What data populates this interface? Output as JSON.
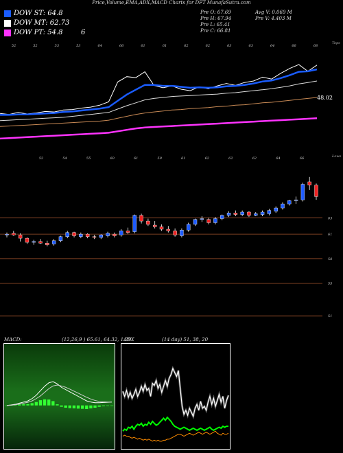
{
  "header": {
    "title": "Price,Volume,EMA,ADX,MACD Charts for DFT MunafaSutra.com"
  },
  "legend": [
    {
      "label": "DOW ST: 64.8",
      "color": "#1a5cff"
    },
    {
      "label": "DOW MT: 62.73",
      "color": "#ffffff"
    },
    {
      "label": "DOW PT: 54.8",
      "color": "#ff33ff"
    }
  ],
  "legend_extra": "6",
  "stats": {
    "prev_open": "Pre O: 67.69",
    "prev_high": "Pre H: 67.94",
    "prev_low": "Pre L: 65.41",
    "prev_close": "Pre C: 66.81",
    "avg_volume": "Avg V: 0.069 M",
    "prev_volume": "Pre V: 4.403 M"
  },
  "chart_data": [
    {
      "type": "line",
      "name": "ema-panel",
      "top_labels": [
        "52",
        "52",
        "53",
        "53",
        "64",
        "66",
        "61",
        "61",
        "62",
        "62",
        "63",
        "63",
        "64",
        "66",
        "68"
      ],
      "corner_label": "Tops",
      "last_value_label": "48.02",
      "series": [
        {
          "name": "price",
          "color": "#ffffff",
          "values": [
            50.2,
            50.0,
            50.4,
            50.1,
            50.3,
            50.6,
            50.5,
            50.9,
            51.0,
            51.3,
            51.5,
            51.9,
            52.6,
            56.7,
            57.8,
            57.6,
            58.8,
            56.0,
            55.5,
            55.9,
            55.2,
            54.9,
            55.7,
            55.3,
            55.9,
            56.4,
            56.0,
            56.6,
            56.9,
            57.7,
            57.3,
            58.5,
            59.5,
            60.3,
            58.9,
            60.2
          ]
        },
        {
          "name": "ema-short",
          "color": "#1a5cff",
          "values": [
            49.9,
            49.9,
            50.0,
            50.0,
            50.1,
            50.2,
            50.3,
            50.5,
            50.6,
            50.8,
            51.0,
            51.2,
            51.5,
            52.8,
            54.1,
            55.1,
            56.1,
            56.1,
            55.9,
            55.9,
            55.7,
            55.5,
            55.6,
            55.5,
            55.6,
            55.8,
            55.9,
            56.1,
            56.4,
            56.8,
            57.0,
            57.5,
            58.1,
            58.8,
            58.9,
            59.3
          ]
        },
        {
          "name": "ema-mid",
          "color": "#dddddd",
          "values": [
            48.7,
            48.8,
            48.9,
            49.0,
            49.1,
            49.2,
            49.3,
            49.4,
            49.6,
            49.8,
            50.0,
            50.2,
            50.4,
            51.1,
            51.8,
            52.4,
            53.0,
            53.3,
            53.5,
            53.7,
            53.8,
            53.9,
            54.0,
            54.1,
            54.2,
            54.4,
            54.5,
            54.7,
            54.9,
            55.1,
            55.3,
            55.6,
            55.9,
            56.3,
            56.6,
            56.9
          ]
        },
        {
          "name": "ema-long",
          "color": "#c98a55",
          "values": [
            47.5,
            47.6,
            47.7,
            47.8,
            47.9,
            48.0,
            48.1,
            48.2,
            48.3,
            48.4,
            48.5,
            48.6,
            48.8,
            49.2,
            49.6,
            50.0,
            50.3,
            50.5,
            50.7,
            50.9,
            51.0,
            51.2,
            51.3,
            51.4,
            51.6,
            51.7,
            51.9,
            52.0,
            52.2,
            52.4,
            52.5,
            52.7,
            52.9,
            53.1,
            53.3,
            53.5
          ]
        },
        {
          "name": "dow-pt",
          "color": "#ff33ff",
          "values": [
            45.0,
            45.1,
            45.2,
            45.3,
            45.4,
            45.5,
            45.6,
            45.7,
            45.8,
            45.9,
            46.0,
            46.1,
            46.2,
            46.5,
            46.8,
            47.1,
            47.3,
            47.4,
            47.5,
            47.6,
            47.7,
            47.8,
            47.9,
            48.0,
            48.1,
            48.2,
            48.3,
            48.4,
            48.5,
            48.6,
            48.7,
            48.8,
            48.9,
            49.0,
            49.1,
            49.2
          ]
        }
      ],
      "ylim": [
        43,
        64
      ]
    },
    {
      "type": "candlestick",
      "name": "price-panel",
      "top_labels": [
        "52",
        "54",
        "55",
        "60",
        "61",
        "59",
        "61",
        "62",
        "62",
        "62",
        "64",
        "66"
      ],
      "corner_label": "Lows",
      "right_levels": [
        {
          "value": 63,
          "label": "63"
        },
        {
          "value": 61,
          "label": "61"
        },
        {
          "value": 58,
          "label": "58"
        },
        {
          "value": 55,
          "label": "55"
        },
        {
          "value": 51,
          "label": "51"
        }
      ],
      "candles": [
        {
          "o": 60.9,
          "h": 61.2,
          "l": 60.6,
          "c": 61.0
        },
        {
          "o": 61.1,
          "h": 61.4,
          "l": 60.8,
          "c": 60.9
        },
        {
          "o": 60.9,
          "h": 61.1,
          "l": 60.1,
          "c": 60.5
        },
        {
          "o": 60.5,
          "h": 60.6,
          "l": 59.8,
          "c": 60.0
        },
        {
          "o": 60.0,
          "h": 60.3,
          "l": 59.7,
          "c": 60.1
        },
        {
          "o": 60.1,
          "h": 60.4,
          "l": 59.8,
          "c": 59.9
        },
        {
          "o": 59.9,
          "h": 60.2,
          "l": 59.5,
          "c": 59.7
        },
        {
          "o": 59.8,
          "h": 60.4,
          "l": 59.6,
          "c": 60.2
        },
        {
          "o": 60.2,
          "h": 60.8,
          "l": 60.0,
          "c": 60.7
        },
        {
          "o": 60.7,
          "h": 61.4,
          "l": 60.5,
          "c": 61.2
        },
        {
          "o": 61.2,
          "h": 61.3,
          "l": 60.6,
          "c": 60.8
        },
        {
          "o": 60.7,
          "h": 61.2,
          "l": 60.5,
          "c": 61.0
        },
        {
          "o": 61.0,
          "h": 61.1,
          "l": 60.5,
          "c": 60.7
        },
        {
          "o": 60.7,
          "h": 60.9,
          "l": 60.4,
          "c": 60.6
        },
        {
          "o": 60.6,
          "h": 61.0,
          "l": 60.4,
          "c": 60.9
        },
        {
          "o": 60.8,
          "h": 61.3,
          "l": 60.6,
          "c": 61.1
        },
        {
          "o": 61.0,
          "h": 61.2,
          "l": 60.6,
          "c": 60.8
        },
        {
          "o": 60.9,
          "h": 61.6,
          "l": 60.7,
          "c": 61.4
        },
        {
          "o": 61.4,
          "h": 61.8,
          "l": 61.0,
          "c": 61.2
        },
        {
          "o": 61.3,
          "h": 63.4,
          "l": 61.1,
          "c": 63.3
        },
        {
          "o": 63.3,
          "h": 63.5,
          "l": 62.3,
          "c": 62.6
        },
        {
          "o": 62.6,
          "h": 62.9,
          "l": 62.0,
          "c": 62.2
        },
        {
          "o": 62.1,
          "h": 62.6,
          "l": 61.7,
          "c": 61.9
        },
        {
          "o": 61.9,
          "h": 62.2,
          "l": 61.4,
          "c": 61.6
        },
        {
          "o": 61.6,
          "h": 62.0,
          "l": 61.2,
          "c": 61.4
        },
        {
          "o": 61.4,
          "h": 61.7,
          "l": 60.7,
          "c": 60.9
        },
        {
          "o": 60.8,
          "h": 61.7,
          "l": 60.6,
          "c": 61.5
        },
        {
          "o": 61.5,
          "h": 62.4,
          "l": 61.3,
          "c": 62.2
        },
        {
          "o": 62.2,
          "h": 62.9,
          "l": 62.0,
          "c": 62.8
        },
        {
          "o": 62.8,
          "h": 63.2,
          "l": 62.5,
          "c": 62.9
        },
        {
          "o": 62.8,
          "h": 63.0,
          "l": 62.2,
          "c": 62.4
        },
        {
          "o": 62.4,
          "h": 63.1,
          "l": 62.2,
          "c": 62.9
        },
        {
          "o": 62.9,
          "h": 63.4,
          "l": 62.7,
          "c": 63.3
        },
        {
          "o": 63.3,
          "h": 63.8,
          "l": 63.1,
          "c": 63.6
        },
        {
          "o": 63.6,
          "h": 63.9,
          "l": 63.2,
          "c": 63.4
        },
        {
          "o": 63.4,
          "h": 63.9,
          "l": 63.2,
          "c": 63.7
        },
        {
          "o": 63.7,
          "h": 63.8,
          "l": 63.1,
          "c": 63.3
        },
        {
          "o": 63.3,
          "h": 63.7,
          "l": 63.2,
          "c": 63.5
        },
        {
          "o": 63.4,
          "h": 63.9,
          "l": 63.2,
          "c": 63.7
        },
        {
          "o": 63.5,
          "h": 64.1,
          "l": 63.3,
          "c": 63.9
        },
        {
          "o": 63.8,
          "h": 64.4,
          "l": 63.6,
          "c": 64.2
        },
        {
          "o": 64.2,
          "h": 64.9,
          "l": 64.0,
          "c": 64.7
        },
        {
          "o": 64.7,
          "h": 65.2,
          "l": 64.5,
          "c": 65.1
        },
        {
          "o": 65.1,
          "h": 65.6,
          "l": 64.7,
          "c": 65.2
        },
        {
          "o": 65.2,
          "h": 67.3,
          "l": 65.0,
          "c": 67.1
        },
        {
          "o": 67.4,
          "h": 68.0,
          "l": 66.4,
          "c": 67.0
        },
        {
          "o": 67.0,
          "h": 67.2,
          "l": 65.2,
          "c": 65.6
        }
      ],
      "ylim": [
        49,
        70
      ]
    },
    {
      "type": "line",
      "name": "macd-panel",
      "label": "MACD:",
      "values_label": "(12,26,9 ) 65.61, 64.32, 1.29",
      "series": [
        {
          "name": "macd",
          "color": "#ffffff",
          "values": [
            0.0,
            0.02,
            0.05,
            0.1,
            0.15,
            0.2,
            0.3,
            0.45,
            0.65,
            0.85,
            1.0,
            1.05,
            0.95,
            0.8,
            0.7,
            0.6,
            0.5,
            0.4,
            0.3,
            0.2,
            0.15,
            0.12,
            0.12,
            0.13,
            0.14,
            0.15
          ]
        },
        {
          "name": "signal",
          "color": "#cccccc",
          "values": [
            0.0,
            0.01,
            0.03,
            0.06,
            0.1,
            0.14,
            0.2,
            0.3,
            0.42,
            0.58,
            0.74,
            0.86,
            0.9,
            0.86,
            0.8,
            0.72,
            0.63,
            0.54,
            0.45,
            0.36,
            0.28,
            0.22,
            0.18,
            0.16,
            0.15,
            0.15
          ]
        }
      ],
      "histogram": [
        0.0,
        0.01,
        0.02,
        0.04,
        0.05,
        0.06,
        0.1,
        0.15,
        0.23,
        0.27,
        0.26,
        0.19,
        0.05,
        -0.06,
        -0.1,
        -0.12,
        -0.13,
        -0.14,
        -0.15,
        -0.16,
        -0.13,
        -0.1,
        -0.06,
        -0.03,
        -0.01,
        0.0
      ],
      "ylim": [
        -1.8,
        2.6
      ]
    },
    {
      "type": "line",
      "name": "adx-panel",
      "label": "ADX",
      "values_label": "(14 day) 51, 38, 20",
      "series": [
        {
          "name": "adx",
          "color": "#ffffff",
          "values": [
            55,
            50,
            56,
            49,
            54,
            48,
            52,
            57,
            50,
            54,
            60,
            55,
            62,
            56,
            58,
            50,
            63,
            61,
            66,
            58,
            62,
            54,
            60,
            66,
            60,
            68,
            72,
            78,
            74,
            70,
            76,
            58,
            40,
            32,
            36,
            31,
            38,
            34,
            30,
            38,
            42,
            36,
            45,
            38,
            40,
            36,
            44,
            50,
            42,
            48,
            40,
            46,
            52,
            44,
            50,
            38,
            46,
            51
          ]
        },
        {
          "name": "plus-di",
          "color": "#00ff00",
          "values": [
            15,
            17,
            16,
            19,
            18,
            20,
            17,
            20,
            22,
            21,
            23,
            20,
            22,
            21,
            24,
            22,
            25,
            23,
            21,
            22,
            24,
            26,
            28,
            26,
            29,
            27,
            25,
            22,
            20,
            19,
            18,
            17,
            18,
            19,
            18,
            17,
            16,
            17,
            18,
            17,
            16,
            17,
            18,
            17,
            16,
            17,
            18,
            19,
            17,
            16,
            17,
            18,
            19,
            18,
            20,
            19,
            20,
            20
          ]
        },
        {
          "name": "minus-di",
          "color": "#ff8c00",
          "values": [
            10,
            11,
            10,
            10,
            9,
            8,
            9,
            8,
            7,
            8,
            7,
            6,
            7,
            6,
            7,
            6,
            5,
            6,
            5,
            6,
            5,
            5,
            6,
            6,
            7,
            7,
            8,
            9,
            10,
            11,
            12,
            12,
            11,
            10,
            11,
            12,
            13,
            12,
            11,
            12,
            13,
            14,
            13,
            12,
            13,
            14,
            13,
            12,
            13,
            14,
            15,
            13,
            12,
            11,
            13,
            12,
            12,
            13
          ]
        }
      ],
      "ylim": [
        0,
        100
      ]
    }
  ]
}
